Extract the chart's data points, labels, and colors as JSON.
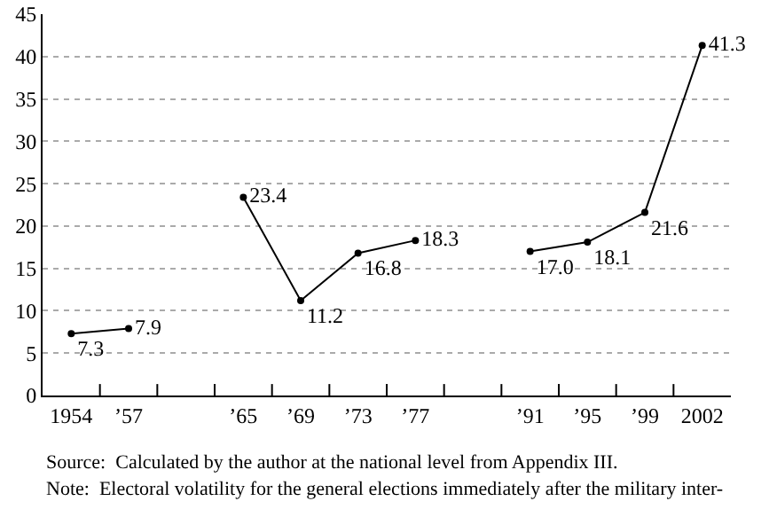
{
  "chart_data": {
    "type": "line",
    "categories": [
      "1954",
      "’57",
      null,
      "’65",
      "’69",
      "’73",
      "’77",
      null,
      "’91",
      "’95",
      "’99",
      "2002"
    ],
    "series": [
      {
        "color": "#000000",
        "values": [
          7.3,
          7.9,
          null,
          23.4,
          11.2,
          16.8,
          18.3,
          null,
          17.0,
          18.1,
          21.6,
          41.3
        ]
      }
    ],
    "ylim": [
      0,
      45
    ],
    "yticks": [
      0,
      5,
      10,
      15,
      20,
      25,
      30,
      35,
      40,
      45
    ],
    "value_labels": [
      "7.3",
      "7.9",
      null,
      "23.4",
      "11.2",
      "16.8",
      "18.3",
      null,
      "17.0",
      "18.1",
      "21.6",
      "41.3"
    ],
    "grid": "y",
    "marker": "circle",
    "line_style": "solid",
    "annotations": [
      "Source:  Calculated by the author at the national level from Appendix III.",
      "Note:  Electoral volatility for the general elections immediately after the military inter-"
    ]
  }
}
